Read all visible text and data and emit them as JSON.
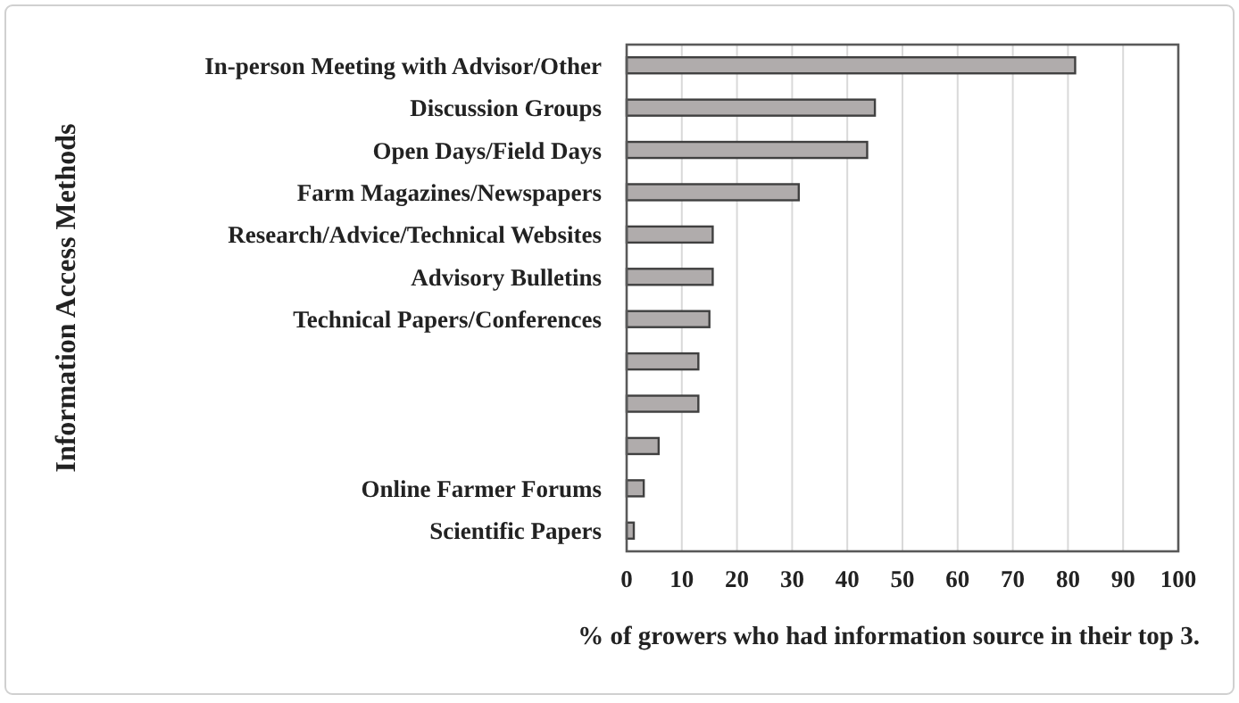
{
  "chart_data": {
    "type": "bar",
    "orientation": "horizontal",
    "xlabel": "% of growers who had information source in their top 3.",
    "ylabel": "Information Access Methods",
    "categories": [
      "In-person Meeting with Advisor/Other",
      "Discussion Groups",
      "Open Days/Field Days",
      "Farm Magazines/Newspapers",
      "Research/Advice/Technical Websites",
      "Advisory Bulletins",
      "Technical Papers/Conferences",
      null,
      null,
      null,
      "Online Farmer Forums",
      "Scientific Papers"
    ],
    "values": [
      81.3,
      45,
      43.6,
      31.2,
      15.6,
      15.6,
      15,
      13,
      13,
      5.8,
      3.1,
      1.3
    ],
    "color": "#b0acac",
    "xlim": [
      0,
      100
    ],
    "xticks": [
      0,
      10,
      20,
      30,
      40,
      50,
      60,
      70,
      80,
      90,
      100
    ],
    "grid": "x"
  }
}
